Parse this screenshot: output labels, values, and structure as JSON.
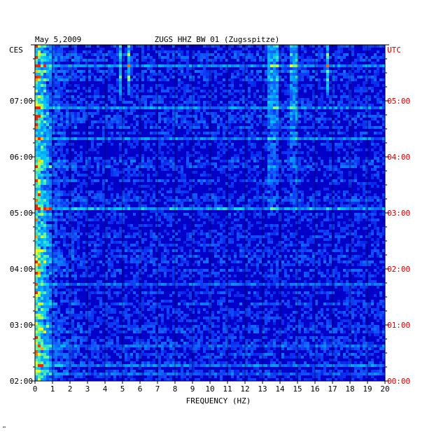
{
  "chart_data": {
    "type": "heatmap",
    "date": "May 5,2009",
    "title": "ZUGS HHZ BW 01 (Zugsspitze)",
    "xlabel": "FREQUENCY (HZ)",
    "left_timezone": "CES",
    "right_timezone": "UTC",
    "x_ticks": [
      "0",
      "1",
      "2",
      "3",
      "4",
      "5",
      "6",
      "7",
      "8",
      "9",
      "10",
      "11",
      "12",
      "13",
      "14",
      "15",
      "16",
      "17",
      "18",
      "19",
      "20"
    ],
    "xlim": [
      0,
      20
    ],
    "left_time_ticks": [
      "07:00",
      "06:00",
      "05:00",
      "04:00",
      "03:00",
      "02:00"
    ],
    "right_time_ticks": [
      "05:00",
      "04:00",
      "03:00",
      "02:00",
      "01:00",
      "00:00"
    ],
    "colors": {
      "background_low": "#0000c8",
      "mid": "#1e64ff",
      "high": "#00c8ff",
      "peak": "#ffff00",
      "max": "#ff0000",
      "right_axis_text": "#cc0000"
    },
    "features": {
      "low_frequency_energy_hz": [
        0,
        1
      ],
      "persistent_lines_hz": [
        13.6,
        14.8
      ],
      "transient_lines_hz": [
        4.9,
        5.4,
        16.7
      ]
    },
    "footnote": "™"
  }
}
